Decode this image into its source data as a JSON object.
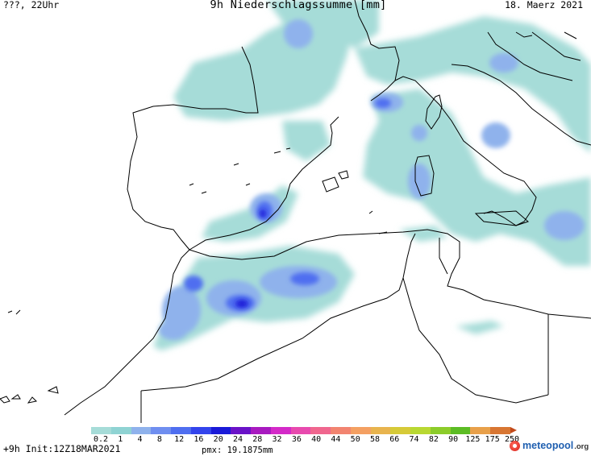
{
  "header": {
    "left": "???, 22Uhr",
    "center": "9h Niederschlagssumme [mm]",
    "right": "18. Maerz 2021"
  },
  "footer": {
    "init": "+9h Init:12Z18MAR2021",
    "pmx": "pmx: 19.1875mm"
  },
  "logo": {
    "name": "meteopool",
    "tld": ".org"
  },
  "legend": {
    "labels": [
      "0.2",
      "1",
      "4",
      "8",
      "12",
      "16",
      "20",
      "24",
      "28",
      "32",
      "36",
      "40",
      "44",
      "50",
      "58",
      "66",
      "74",
      "82",
      "90",
      "125",
      "175",
      "250"
    ],
    "colors": [
      "#a6dcd8",
      "#8fd3d3",
      "#8fb2ec",
      "#6f8ef0",
      "#4f6ef0",
      "#3344ec",
      "#1a1ad8",
      "#6a12c8",
      "#a81ac0",
      "#d42ac8",
      "#e84aae",
      "#f0668e",
      "#f28470",
      "#f4a062",
      "#e8b44e",
      "#d6ca38",
      "#b8d832",
      "#8ccc2a",
      "#5cbc24",
      "#e8a04a",
      "#d87632",
      "#c24a1a"
    ],
    "units": "mm"
  },
  "map": {
    "projection": "lat-lon",
    "region": "Western Mediterranean",
    "ocean_color": "#ffffff",
    "precip_max_area": "Atlas / Morocco-Algeria"
  }
}
